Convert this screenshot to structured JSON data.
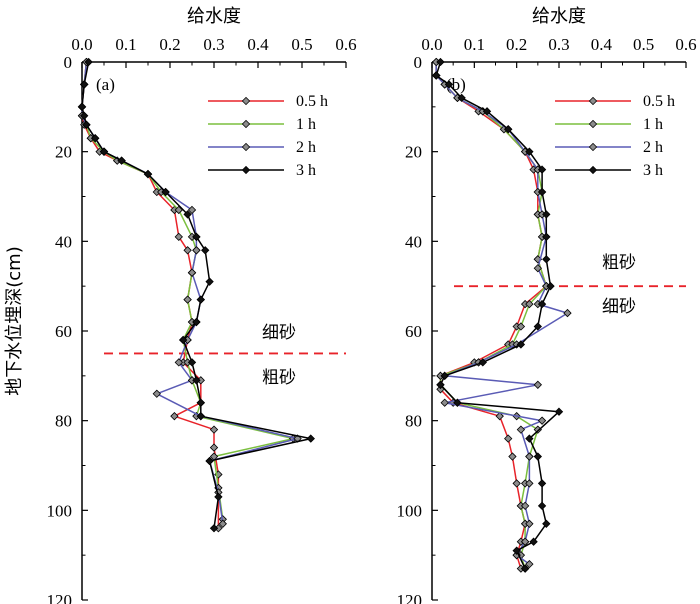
{
  "chart_data": [
    {
      "type": "line",
      "panel_label": "(a)",
      "x_title": "给水度",
      "y_title": "地下水位埋深(cm)",
      "xlim": [
        0,
        0.6
      ],
      "ylim": [
        0,
        120
      ],
      "x_ticks": [
        0,
        0.1,
        0.2,
        0.3,
        0.4,
        0.5,
        0.6
      ],
      "x_tick_labels": [
        "0.0",
        "0.1",
        "0.2",
        "0.3",
        "0.4",
        "0.5",
        "0.6"
      ],
      "y_ticks": [
        0,
        20,
        40,
        60,
        80,
        100,
        120
      ],
      "y_tick_labels": [
        "0",
        "20",
        "40",
        "60",
        "80",
        "100",
        "120"
      ],
      "legend_position": "top-right",
      "boundary": {
        "depth": 65,
        "label_above": "细砂",
        "label_below": "粗砂",
        "color": "#e8232a"
      },
      "series": [
        {
          "name": "0.5 h",
          "color": "#e8232a",
          "x": [
            0.01,
            0.005,
            0.0,
            0.0,
            0.005,
            0.02,
            0.04,
            0.08,
            0.15,
            0.17,
            0.21,
            0.22,
            0.24,
            0.25,
            0.24,
            0.25,
            0.24,
            0.23,
            0.27,
            0.27,
            0.21,
            0.3,
            0.3,
            0.31,
            0.31
          ],
          "y": [
            0,
            5,
            10,
            12,
            14,
            17,
            20,
            22,
            25,
            29,
            33,
            39,
            42,
            47,
            53,
            58,
            62,
            67,
            71,
            76,
            79,
            82,
            86,
            92,
            104
          ]
        },
        {
          "name": "1 h",
          "color": "#7bbf3e",
          "x": [
            0.01,
            0.005,
            0.0,
            0.0,
            0.01,
            0.02,
            0.05,
            0.08,
            0.15,
            0.18,
            0.22,
            0.25,
            0.26,
            0.25,
            0.24,
            0.25,
            0.23,
            0.24,
            0.25,
            0.27,
            0.26,
            0.48,
            0.3,
            0.31,
            0.32
          ],
          "y": [
            0,
            5,
            10,
            12,
            14,
            17,
            20,
            22,
            25,
            29,
            33,
            39,
            42,
            47,
            53,
            58,
            62,
            67,
            71,
            76,
            79,
            84,
            88,
            95,
            102
          ]
        },
        {
          "name": "2 h",
          "color": "#5a5bb5",
          "x": [
            0.01,
            0.005,
            0.0,
            0.0,
            0.01,
            0.03,
            0.05,
            0.09,
            0.15,
            0.19,
            0.25,
            0.26,
            0.26,
            0.25,
            0.27,
            0.26,
            0.24,
            0.22,
            0.25,
            0.17,
            0.27,
            0.49,
            0.29,
            0.31,
            0.32
          ],
          "y": [
            0,
            5,
            10,
            12,
            14,
            17,
            20,
            22,
            25,
            29,
            33,
            39,
            42,
            47,
            53,
            58,
            62,
            67,
            71,
            74,
            79,
            84,
            89,
            96,
            103
          ]
        },
        {
          "name": "3 h",
          "color": "#000000",
          "x": [
            0.015,
            0.005,
            0.0,
            0.005,
            0.01,
            0.03,
            0.05,
            0.09,
            0.15,
            0.19,
            0.24,
            0.26,
            0.28,
            0.29,
            0.27,
            0.26,
            0.23,
            0.25,
            0.26,
            0.27,
            0.27,
            0.52,
            0.29,
            0.31,
            0.3
          ],
          "y": [
            0,
            5,
            10,
            12,
            14,
            17,
            20,
            22,
            25,
            29,
            34,
            39,
            42,
            49,
            53,
            58,
            62,
            67,
            71,
            76,
            79,
            84,
            89,
            97,
            104
          ]
        }
      ]
    },
    {
      "type": "line",
      "panel_label": "(b)",
      "x_title": "给水度",
      "y_title": "",
      "xlim": [
        0,
        0.6
      ],
      "ylim": [
        0,
        120
      ],
      "x_ticks": [
        0,
        0.1,
        0.2,
        0.3,
        0.4,
        0.5,
        0.6
      ],
      "x_tick_labels": [
        "0.0",
        "0.1",
        "0.2",
        "0.3",
        "0.4",
        "0.5",
        "0.6"
      ],
      "y_ticks": [
        0,
        20,
        40,
        60,
        80,
        100,
        120
      ],
      "y_tick_labels": [
        "0",
        "20",
        "40",
        "60",
        "80",
        "100",
        "120"
      ],
      "legend_position": "top-right",
      "boundary": {
        "depth": 50,
        "label_above": "粗砂",
        "label_below": "细砂",
        "color": "#e8232a"
      },
      "series": [
        {
          "name": "0.5 h",
          "color": "#e8232a",
          "x": [
            0.01,
            0.01,
            0.03,
            0.06,
            0.11,
            0.17,
            0.22,
            0.24,
            0.25,
            0.25,
            0.26,
            0.25,
            0.27,
            0.22,
            0.2,
            0.18,
            0.1,
            0.02,
            0.02,
            0.05,
            0.16,
            0.18,
            0.19,
            0.2,
            0.21,
            0.22,
            0.21,
            0.2,
            0.21
          ],
          "y": [
            0,
            3,
            5,
            8,
            11,
            15,
            20,
            24,
            29,
            34,
            39,
            44,
            50,
            54,
            59,
            63,
            67,
            70,
            73,
            76,
            79,
            84,
            88,
            94,
            99,
            103,
            107,
            110,
            113
          ]
        },
        {
          "name": "1 h",
          "color": "#7bbf3e",
          "x": [
            0.01,
            0.01,
            0.03,
            0.06,
            0.12,
            0.17,
            0.22,
            0.25,
            0.26,
            0.25,
            0.26,
            0.25,
            0.27,
            0.23,
            0.21,
            0.19,
            0.11,
            0.02,
            0.02,
            0.06,
            0.2,
            0.25,
            0.23,
            0.22,
            0.21,
            0.22,
            0.22,
            0.21,
            0.22
          ],
          "y": [
            0,
            3,
            5,
            8,
            11,
            15,
            20,
            24,
            29,
            34,
            39,
            44,
            50,
            54,
            59,
            63,
            67,
            70,
            72,
            76,
            79,
            82,
            88,
            94,
            99,
            103,
            107,
            110,
            113
          ]
        },
        {
          "name": "2 h",
          "color": "#5a5bb5",
          "x": [
            0.01,
            0.01,
            0.03,
            0.06,
            0.12,
            0.18,
            0.22,
            0.25,
            0.25,
            0.26,
            0.27,
            0.25,
            0.27,
            0.25,
            0.32,
            0.2,
            0.11,
            0.03,
            0.25,
            0.03,
            0.26,
            0.21,
            0.23,
            0.23,
            0.22,
            0.23,
            0.22,
            0.2,
            0.23
          ],
          "y": [
            0,
            3,
            5,
            8,
            11,
            15,
            20,
            24,
            29,
            34,
            39,
            46,
            50,
            54,
            56,
            63,
            67,
            70,
            72,
            76,
            80,
            82,
            88,
            94,
            99,
            103,
            107,
            110,
            112
          ]
        },
        {
          "name": "3 h",
          "color": "#000000",
          "x": [
            0.02,
            0.01,
            0.04,
            0.07,
            0.13,
            0.18,
            0.23,
            0.26,
            0.26,
            0.27,
            0.27,
            0.27,
            0.28,
            0.26,
            0.25,
            0.21,
            0.12,
            0.03,
            0.02,
            0.06,
            0.3,
            0.23,
            0.25,
            0.26,
            0.26,
            0.27,
            0.24,
            0.2,
            0.22
          ],
          "y": [
            0,
            3,
            5,
            8,
            11,
            15,
            20,
            24,
            29,
            34,
            39,
            44,
            50,
            54,
            59,
            63,
            67,
            70,
            72,
            76,
            78,
            84,
            88,
            94,
            99,
            103,
            107,
            109,
            113
          ]
        }
      ]
    }
  ]
}
